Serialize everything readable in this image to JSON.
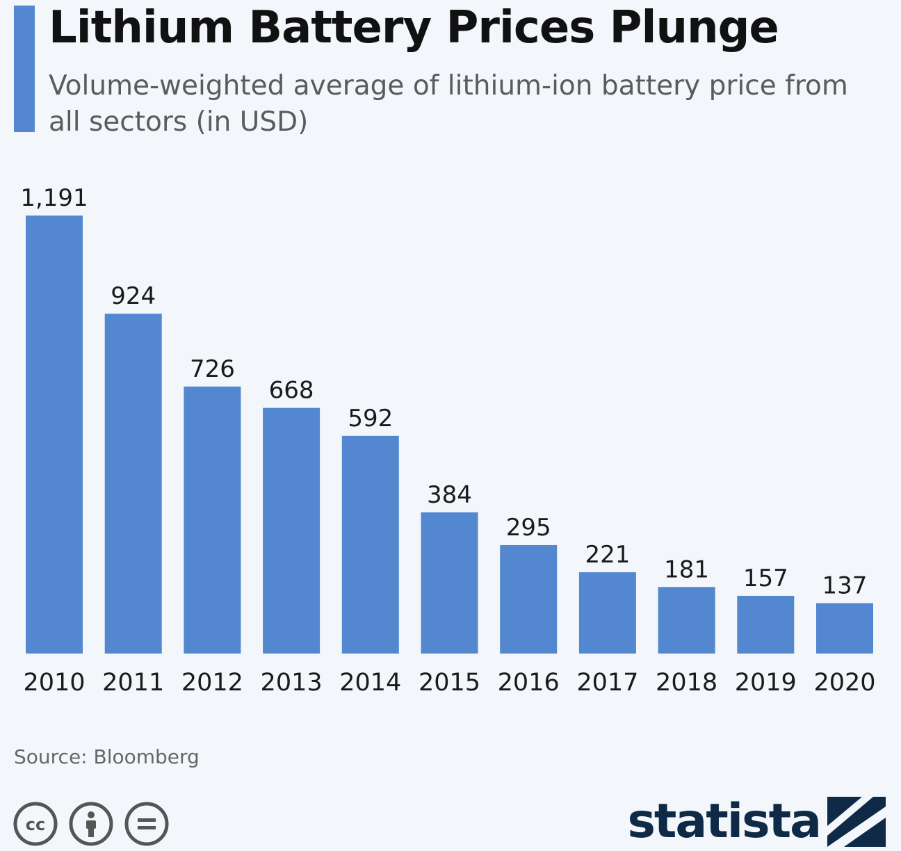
{
  "header": {
    "title": "Lithium Battery Prices Plunge",
    "subtitle": "Volume-weighted average of lithium-ion battery price from all sectors (in USD)"
  },
  "colors": {
    "accent": "#5387d0",
    "background": "#f3f7fb",
    "brand": "#0e2a47"
  },
  "chart_data": {
    "type": "bar",
    "categories": [
      "2010",
      "2011",
      "2012",
      "2013",
      "2014",
      "2015",
      "2016",
      "2017",
      "2018",
      "2019",
      "2020"
    ],
    "values": [
      1191,
      924,
      726,
      668,
      592,
      384,
      295,
      221,
      181,
      157,
      137
    ],
    "value_labels": [
      "1,191",
      "924",
      "726",
      "668",
      "592",
      "384",
      "295",
      "221",
      "181",
      "157",
      "137"
    ],
    "title": "Lithium Battery Prices Plunge",
    "subtitle": "Volume-weighted average of lithium-ion battery price from all sectors (in USD)",
    "xlabel": "",
    "ylabel": "",
    "ylim": [
      0,
      1191
    ],
    "grid": false,
    "bar_color": "#5387d0"
  },
  "footer": {
    "source": "Source: Bloomberg",
    "brand": "statista",
    "license_icons": [
      "cc-icon",
      "attribution-icon",
      "no-derivatives-icon"
    ]
  }
}
